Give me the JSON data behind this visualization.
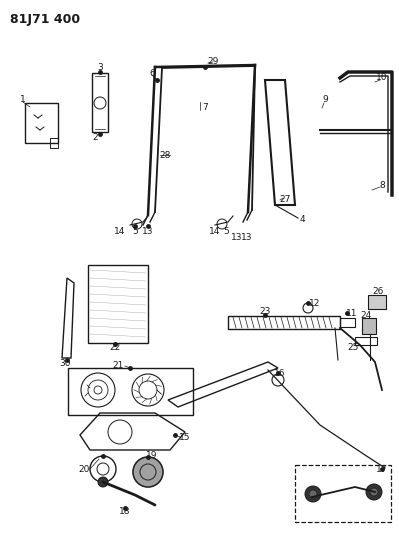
{
  "title": "81J71 400",
  "bg_color": "#ffffff",
  "lc": "#1a1a1a",
  "title_fontsize": 9,
  "label_fontsize": 6.5
}
